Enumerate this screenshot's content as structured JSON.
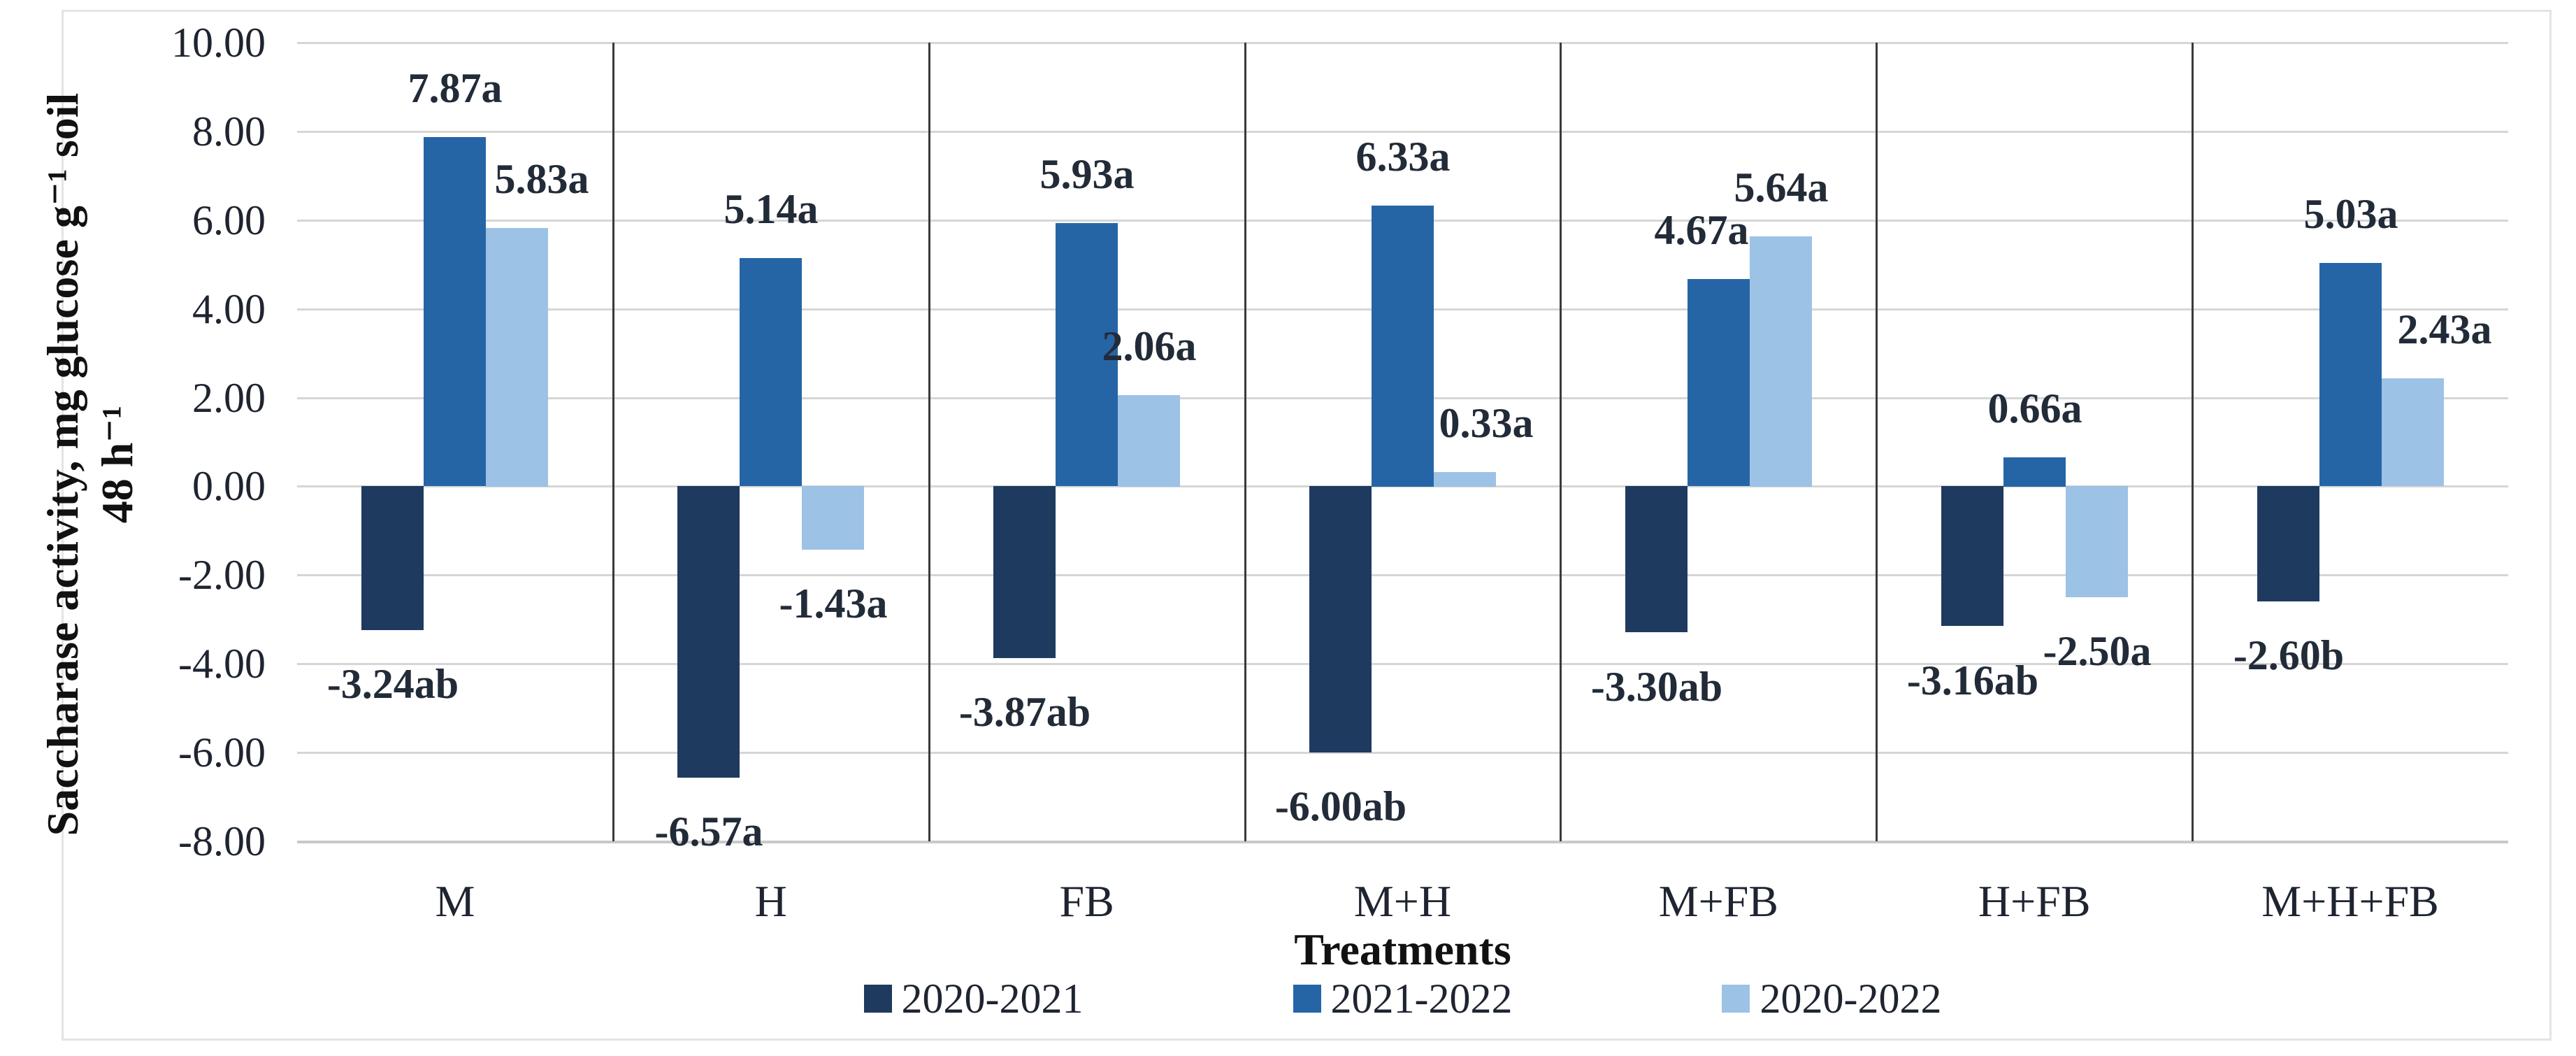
{
  "chart_data": {
    "type": "bar",
    "title": "",
    "xlabel": "Treatments",
    "ylabel_line1": "Saccharase activity, mg glucose g⁻¹ soil",
    "ylabel_line2": "48 h⁻¹",
    "categories": [
      "M",
      "H",
      "FB",
      "M+H",
      "M+FB",
      "H+FB",
      "M+H+FB"
    ],
    "series": [
      {
        "name": "2020-2021",
        "color": "#1e3a5f",
        "values": [
          -3.24,
          -6.57,
          -3.87,
          -6.0,
          -3.3,
          -3.16,
          -2.6
        ],
        "labels": [
          "-3.24ab",
          "-6.57a",
          "-3.87ab",
          "-6.00ab",
          "-3.30ab",
          "-3.16ab",
          "-2.60b"
        ]
      },
      {
        "name": "2021-2022",
        "color": "#2565a6",
        "values": [
          7.87,
          5.14,
          5.93,
          6.33,
          4.67,
          0.66,
          5.03
        ],
        "labels": [
          "7.87a",
          "5.14a",
          "5.93a",
          "6.33a",
          "4.67a",
          "0.66a",
          "5.03a"
        ]
      },
      {
        "name": "2020-2022",
        "color": "#9cc2e5",
        "values": [
          5.83,
          -1.43,
          2.06,
          0.33,
          5.64,
          -2.5,
          2.43
        ],
        "labels": [
          "5.83a",
          "-1.43a",
          "2.06a",
          "0.33a",
          "5.64a",
          "-2.50a",
          "2.43a"
        ]
      }
    ],
    "y_axis": {
      "min": -8,
      "max": 10,
      "step": 2,
      "tick_labels": [
        "10.00",
        "8.00",
        "6.00",
        "4.00",
        "2.00",
        "0.00",
        "-2.00",
        "-4.00",
        "-6.00",
        "-8.00"
      ]
    },
    "grid": true,
    "legend_position": "bottom",
    "category_separators": true,
    "label_dx": {
      "2,0": 35,
      "2,3": 30,
      "1,4": -25,
      "2,6": 45
    }
  }
}
